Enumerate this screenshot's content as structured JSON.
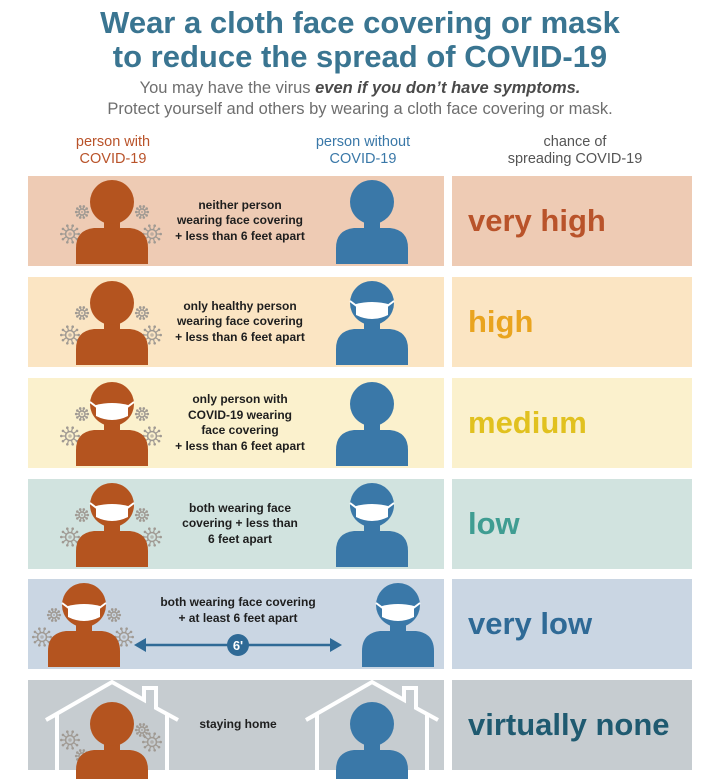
{
  "header": {
    "title_line1": "Wear a cloth face covering or mask",
    "title_line2": "to reduce the spread of COVID-19",
    "subtitle_line1_pre": "You may have the virus ",
    "subtitle_line1_em": "even if you don’t have symptoms.",
    "subtitle_line2": "Protect yourself and others by wearing a cloth face covering or mask."
  },
  "columns": {
    "with_line1": "person with",
    "with_line2": "COVID-19",
    "without_line1": "person without",
    "without_line2": "COVID-19",
    "chance_line1": "chance of",
    "chance_line2": "spreading COVID-19"
  },
  "rows": [
    {
      "desc": [
        "neither person",
        "wearing face covering",
        "+ less than 6 feet apart"
      ],
      "chance": "very high",
      "colors": {
        "panel": "#eecbb4",
        "text": "#b9532a"
      }
    },
    {
      "desc": [
        "only healthy person",
        "wearing face covering",
        "+ less than 6 feet apart"
      ],
      "chance": "high",
      "colors": {
        "panel": "#fbe5c3",
        "text": "#e9a41f"
      }
    },
    {
      "desc": [
        "only person with",
        "COVID-19 wearing",
        "face covering",
        "+ less than 6 feet apart"
      ],
      "chance": "medium",
      "colors": {
        "panel": "#fbf1cd",
        "text": "#e1c11f"
      }
    },
    {
      "desc": [
        "both wearing face",
        "covering + less than",
        "6 feet apart"
      ],
      "chance": "low",
      "colors": {
        "panel": "#d1e3df",
        "text": "#3f9d92"
      }
    },
    {
      "desc": [
        "both wearing face covering",
        "+ at least 6 feet apart"
      ],
      "distance_label": "6'",
      "chance": "very low",
      "colors": {
        "panel": "#cad6e3",
        "text": "#2f6a96"
      }
    },
    {
      "desc": [
        "staying home"
      ],
      "chance": "virtually none",
      "colors": {
        "panel": "#c6ccd0",
        "text": "#1f5a70"
      }
    }
  ],
  "palette": {
    "infected": "#b4541f",
    "healthy": "#3a78a8",
    "mask": "#ffffff",
    "virus": "#a09a93",
    "title": "#3a7591"
  },
  "icons": [
    "person-icon",
    "mask-icon",
    "virus-icon",
    "house-icon",
    "double-arrow-icon"
  ]
}
